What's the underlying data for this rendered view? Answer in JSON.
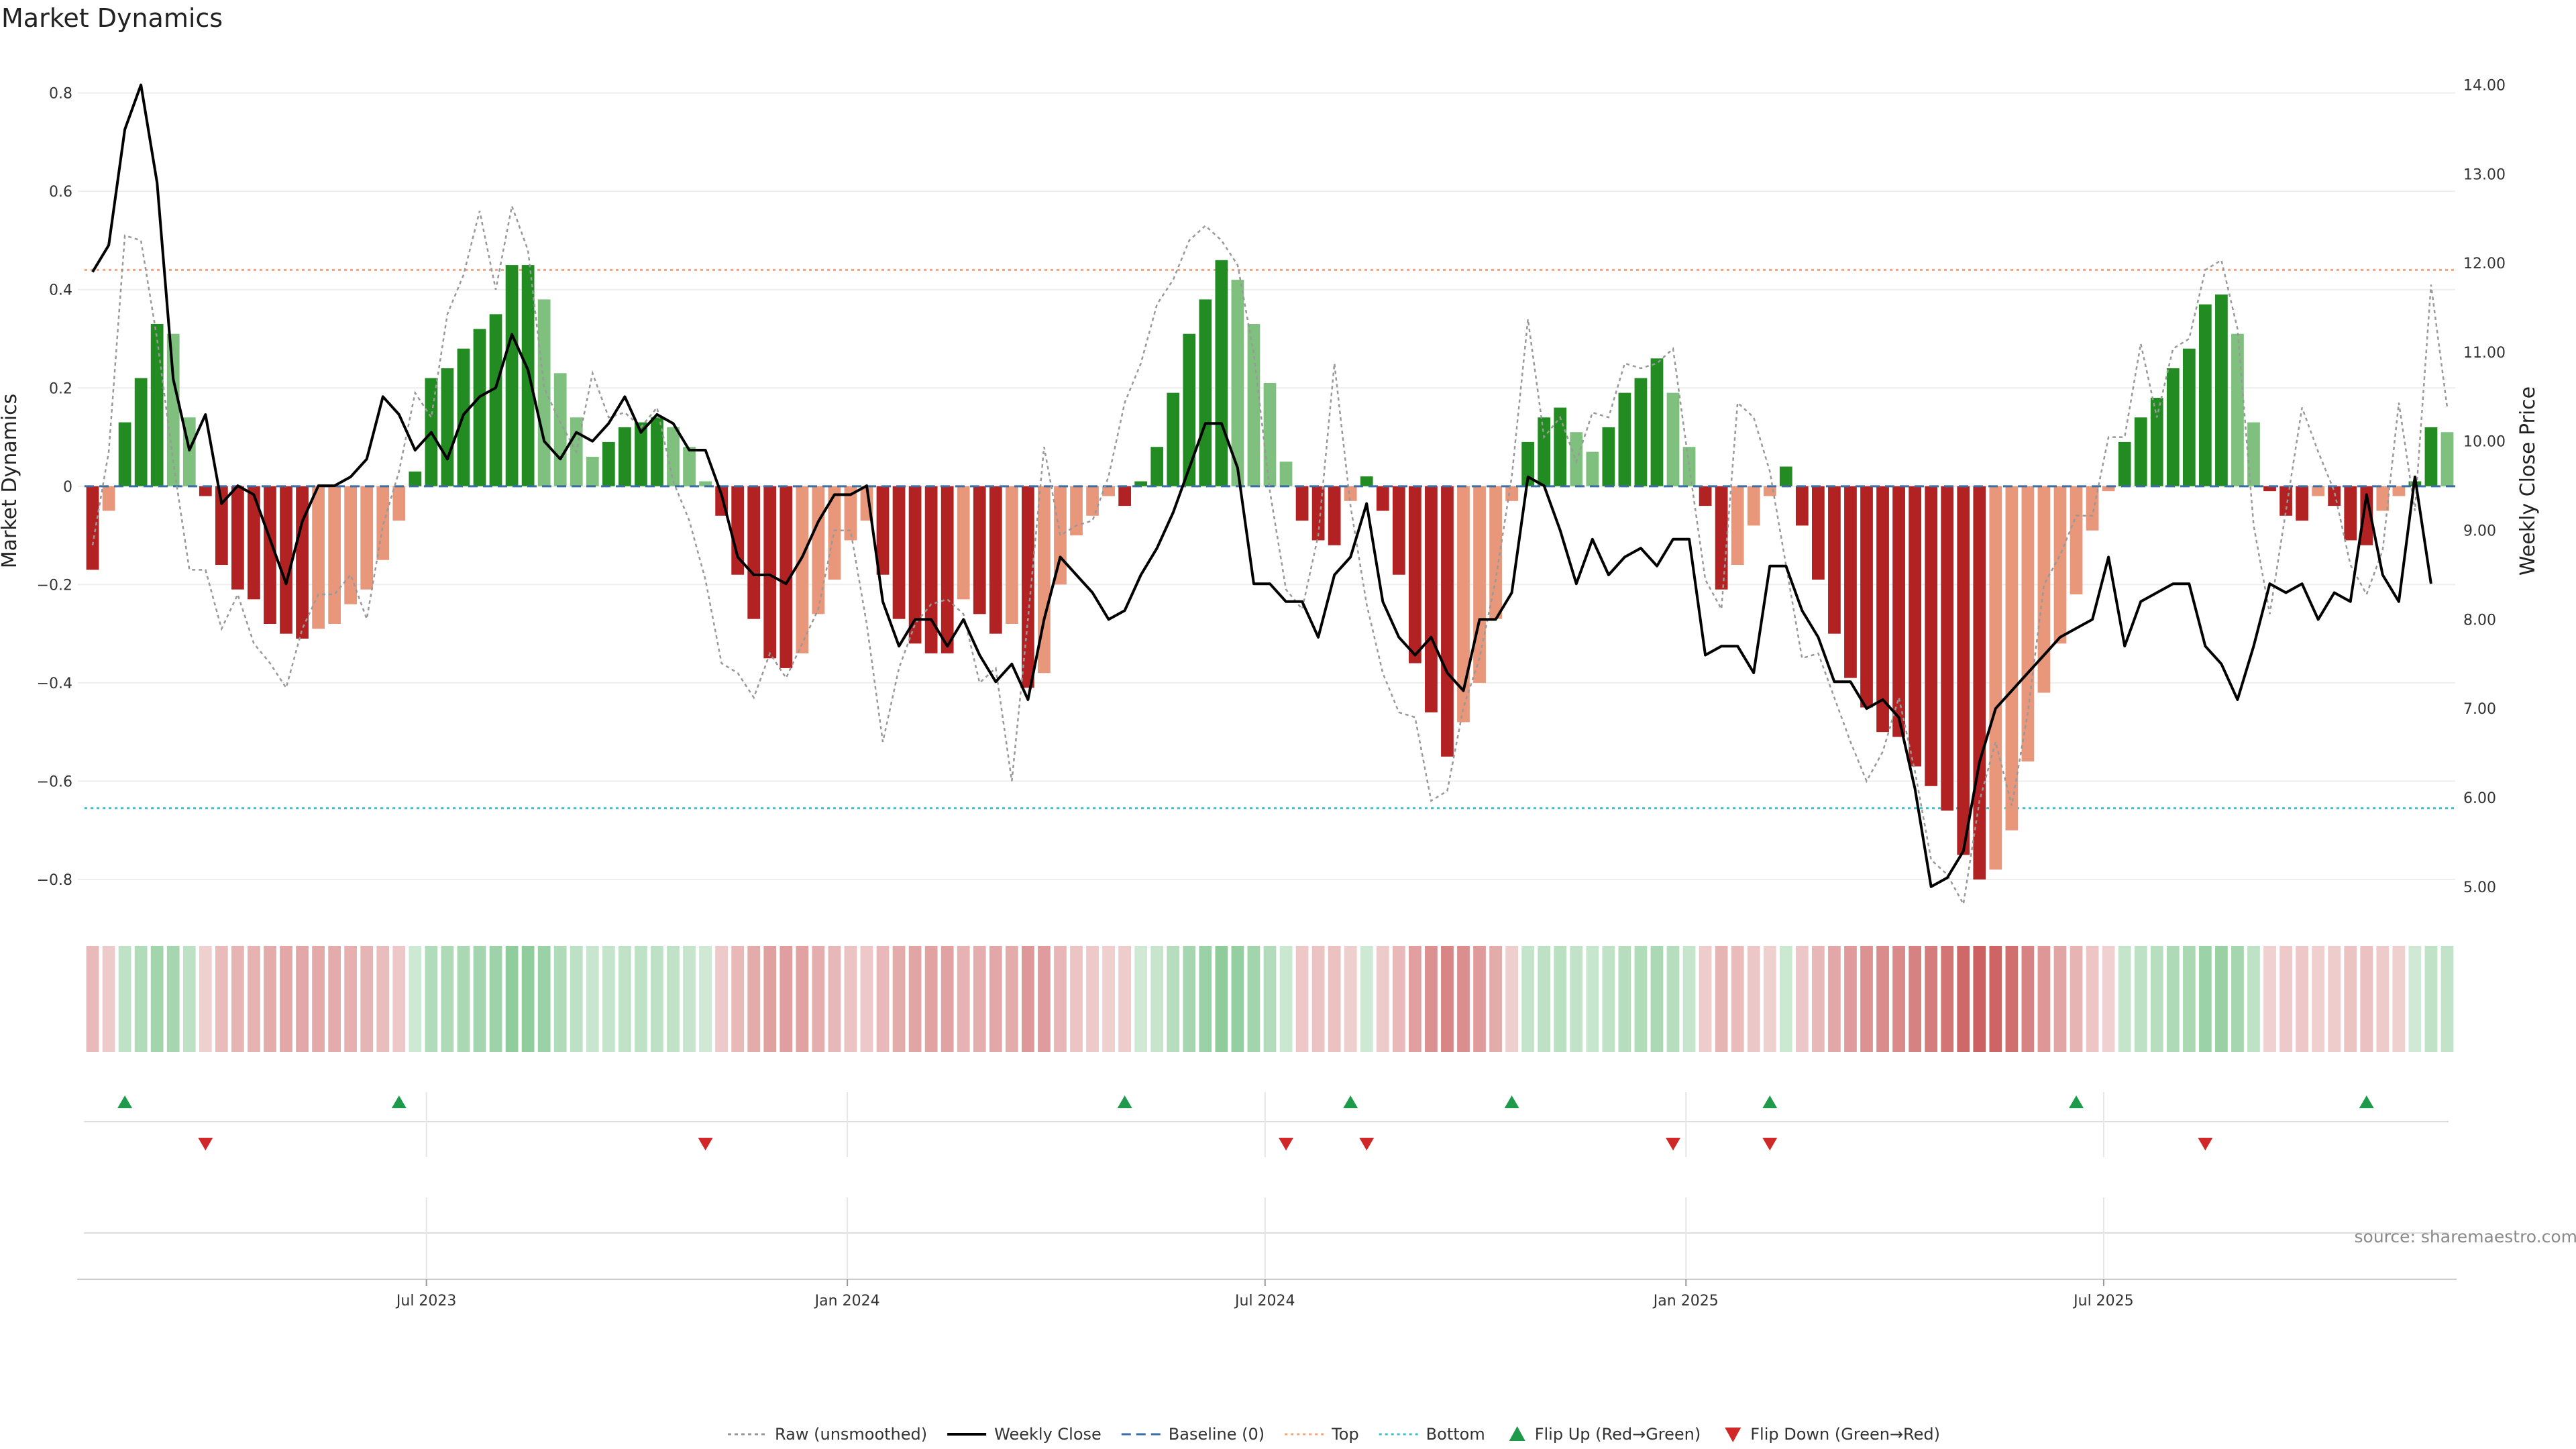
{
  "chart_data": {
    "type": "bar",
    "title": "Market Dynamics",
    "ylabel": "Market Dynamics",
    "y2label": "Weekly Close Price",
    "ylim": [
      -0.86,
      0.88
    ],
    "y2lim": [
      4.75,
      14.35
    ],
    "yticks": [
      "0.8",
      "0.6",
      "0.4",
      "0.2",
      "0",
      "−0.2",
      "−0.4",
      "−0.6",
      "−0.8"
    ],
    "yticks_values": [
      0.8,
      0.6,
      0.4,
      0.2,
      0,
      -0.2,
      -0.4,
      -0.6,
      -0.8
    ],
    "y2ticks": [
      "14.00",
      "13.00",
      "12.00",
      "11.00",
      "10.00",
      "9.00",
      "8.00",
      "7.00",
      "6.00",
      "5.00"
    ],
    "y2ticks_values": [
      14,
      13,
      12,
      11,
      10,
      9,
      8,
      7,
      6,
      5
    ],
    "xticks": [
      "Jul 2023",
      "Jan 2024",
      "Jul 2024",
      "Jan 2025",
      "Jul 2025"
    ],
    "xticks_index": [
      21.2,
      47.3,
      73.2,
      99.3,
      125.2
    ],
    "top_threshold": 0.44,
    "bottom_threshold": -0.655,
    "baseline": 0,
    "source": "source: sharemaestro.com",
    "legend": [
      {
        "label": "Raw (unsmoothed)",
        "style": "dotted-gray-line"
      },
      {
        "label": "Weekly Close",
        "style": "solid-black-line"
      },
      {
        "label": "Baseline (0)",
        "style": "dashed-blue-line"
      },
      {
        "label": "Top",
        "style": "dotted-orange-line"
      },
      {
        "label": "Bottom",
        "style": "dotted-cyan-line"
      },
      {
        "label": "Flip Up (Red→Green)",
        "style": "green-up-triangle"
      },
      {
        "label": "Flip Down (Green→Red)",
        "style": "red-down-triangle"
      }
    ],
    "smoothed": [
      -0.17,
      -0.05,
      0.13,
      0.22,
      0.33,
      0.31,
      0.14,
      -0.02,
      -0.16,
      -0.21,
      -0.23,
      -0.28,
      -0.3,
      -0.31,
      -0.29,
      -0.28,
      -0.24,
      -0.21,
      -0.15,
      -0.07,
      0.03,
      0.22,
      0.24,
      0.28,
      0.32,
      0.35,
      0.45,
      0.45,
      0.38,
      0.23,
      0.14,
      0.06,
      0.09,
      0.12,
      0.13,
      0.14,
      0.12,
      0.08,
      0.01,
      -0.06,
      -0.18,
      -0.27,
      -0.35,
      -0.37,
      -0.34,
      -0.26,
      -0.19,
      -0.11,
      -0.07,
      -0.18,
      -0.27,
      -0.32,
      -0.34,
      -0.34,
      -0.23,
      -0.26,
      -0.3,
      -0.28,
      -0.41,
      -0.38,
      -0.2,
      -0.1,
      -0.06,
      -0.02,
      -0.04,
      0.01,
      0.08,
      0.19,
      0.31,
      0.38,
      0.46,
      0.42,
      0.33,
      0.21,
      0.05,
      -0.07,
      -0.11,
      -0.12,
      -0.03,
      0.02,
      -0.05,
      -0.18,
      -0.36,
      -0.46,
      -0.55,
      -0.48,
      -0.4,
      -0.27,
      -0.03,
      0.09,
      0.14,
      0.16,
      0.11,
      0.07,
      0.12,
      0.19,
      0.22,
      0.26,
      0.19,
      0.08,
      -0.04,
      -0.21,
      -0.16,
      -0.08,
      -0.02,
      0.04,
      -0.08,
      -0.19,
      -0.3,
      -0.39,
      -0.45,
      -0.5,
      -0.51,
      -0.57,
      -0.61,
      -0.66,
      -0.75,
      -0.8,
      -0.78,
      -0.7,
      -0.56,
      -0.42,
      -0.32,
      -0.22,
      -0.09,
      -0.01,
      0.09,
      0.14,
      0.18,
      0.24,
      0.28,
      0.37,
      0.39,
      0.31,
      0.13,
      -0.01,
      -0.06,
      -0.07,
      -0.02,
      -0.04,
      -0.11,
      -0.12,
      -0.05,
      -0.02,
      0.01,
      0.12,
      0.11
    ],
    "raw": [
      -0.12,
      0.07,
      0.51,
      0.5,
      0.3,
      0.05,
      -0.17,
      -0.17,
      -0.29,
      -0.22,
      -0.32,
      -0.36,
      -0.41,
      -0.29,
      -0.22,
      -0.22,
      -0.18,
      -0.27,
      -0.08,
      0.03,
      0.19,
      0.14,
      0.35,
      0.43,
      0.56,
      0.4,
      0.57,
      0.48,
      0.2,
      0.13,
      0.07,
      0.23,
      0.14,
      0.15,
      0.12,
      0.16,
      0.01,
      -0.07,
      -0.19,
      -0.36,
      -0.38,
      -0.43,
      -0.34,
      -0.39,
      -0.32,
      -0.25,
      -0.09,
      -0.09,
      -0.28,
      -0.52,
      -0.37,
      -0.28,
      -0.24,
      -0.23,
      -0.26,
      -0.4,
      -0.37,
      -0.6,
      -0.27,
      0.08,
      -0.1,
      -0.08,
      -0.07,
      0.02,
      0.17,
      0.25,
      0.37,
      0.42,
      0.5,
      0.53,
      0.5,
      0.45,
      0.27,
      -0.01,
      -0.21,
      -0.25,
      -0.1,
      0.25,
      -0.04,
      -0.24,
      -0.38,
      -0.46,
      -0.47,
      -0.64,
      -0.62,
      -0.45,
      -0.35,
      -0.19,
      0.02,
      0.34,
      0.1,
      0.14,
      0.05,
      0.15,
      0.14,
      0.25,
      0.24,
      0.25,
      0.28,
      0.04,
      -0.19,
      -0.25,
      0.17,
      0.14,
      0.03,
      -0.16,
      -0.35,
      -0.34,
      -0.43,
      -0.52,
      -0.6,
      -0.54,
      -0.43,
      -0.58,
      -0.76,
      -0.79,
      -0.85,
      -0.64,
      -0.52,
      -0.65,
      -0.46,
      -0.2,
      -0.14,
      -0.06,
      -0.06,
      0.1,
      0.1,
      0.29,
      0.14,
      0.28,
      0.3,
      0.44,
      0.46,
      0.32,
      -0.08,
      -0.26,
      -0.05,
      0.16,
      0.07,
      -0.01,
      -0.16,
      -0.22,
      -0.13,
      0.17,
      -0.05,
      0.41,
      0.16
    ],
    "price": [
      11.9,
      12.2,
      13.5,
      14.0,
      12.9,
      10.7,
      9.9,
      10.3,
      9.3,
      9.5,
      9.4,
      8.9,
      8.4,
      9.1,
      9.5,
      9.5,
      9.6,
      9.8,
      10.5,
      10.3,
      9.9,
      10.1,
      9.8,
      10.3,
      10.5,
      10.6,
      11.2,
      10.8,
      10.0,
      9.8,
      10.1,
      10.0,
      10.2,
      10.5,
      10.1,
      10.3,
      10.2,
      9.9,
      9.9,
      9.4,
      8.7,
      8.5,
      8.5,
      8.4,
      8.7,
      9.1,
      9.4,
      9.4,
      9.5,
      8.2,
      7.7,
      8.0,
      8.0,
      7.7,
      8.0,
      7.6,
      7.3,
      7.5,
      7.1,
      8.0,
      8.7,
      8.5,
      8.3,
      8.0,
      8.1,
      8.5,
      8.8,
      9.2,
      9.7,
      10.2,
      10.2,
      9.7,
      8.4,
      8.4,
      8.2,
      8.2,
      7.8,
      8.5,
      8.7,
      9.3,
      8.2,
      7.8,
      7.6,
      7.8,
      7.4,
      7.2,
      8.0,
      8.0,
      8.3,
      9.6,
      9.5,
      9.0,
      8.4,
      8.9,
      8.5,
      8.7,
      8.8,
      8.6,
      8.9,
      8.9,
      7.6,
      7.7,
      7.7,
      7.4,
      8.6,
      8.6,
      8.1,
      7.8,
      7.3,
      7.3,
      7.0,
      7.1,
      6.9,
      6.1,
      5.0,
      5.1,
      5.4,
      6.4,
      7.0,
      7.2,
      7.4,
      7.6,
      7.8,
      7.9,
      8.0,
      8.7,
      7.7,
      8.2,
      8.3,
      8.4,
      8.4,
      7.7,
      7.5,
      7.1,
      7.7,
      8.4,
      8.3,
      8.4,
      8.0,
      8.3,
      8.2,
      9.4,
      8.5,
      8.2,
      9.6,
      8.4
    ],
    "flip_up_index": [
      2,
      19,
      64,
      78,
      88,
      104,
      123,
      141
    ],
    "flip_down_index": [
      7,
      38,
      74,
      79,
      98,
      104,
      131
    ],
    "regime_colors": {
      "strong_green": "#228b22",
      "fading_green": "#7fc07f",
      "strong_red": "#b22222",
      "fading_red": "#e8977a",
      "top_line": "#f4a582",
      "bottom_line": "#40c0c8",
      "baseline": "#3a6ea5",
      "flip_up": "#1e9a4a",
      "flip_down": "#d02828"
    }
  }
}
